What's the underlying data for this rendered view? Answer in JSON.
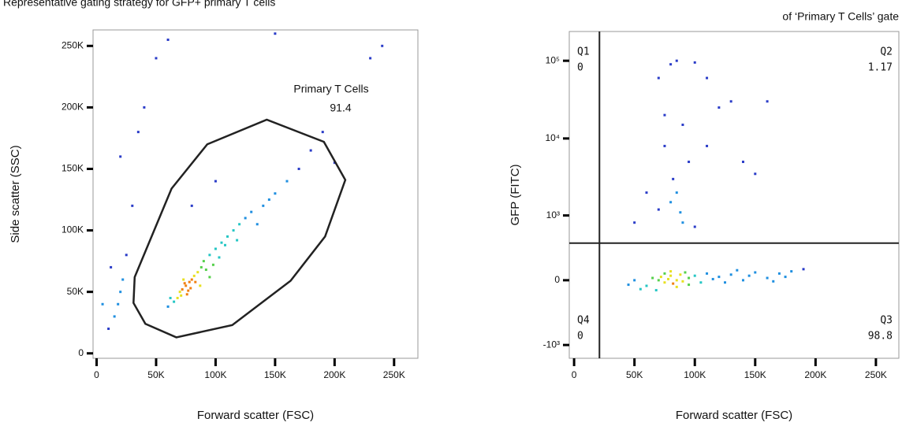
{
  "chart_data": [
    {
      "type": "scatter",
      "title": "Representative gating strategy for GFP+ primary T cells",
      "x_label": "Forward scatter (FSC)",
      "y_label": "Side scatter (SSC)",
      "xlim": [
        -3000,
        270000
      ],
      "ylim": [
        -4000,
        263000
      ],
      "xticks": [
        {
          "value": 0,
          "label": "0"
        },
        {
          "value": 50000,
          "label": "50K"
        },
        {
          "value": 100000,
          "label": "100K"
        },
        {
          "value": 150000,
          "label": "150K"
        },
        {
          "value": 200000,
          "label": "200K"
        },
        {
          "value": 250000,
          "label": "250K"
        }
      ],
      "yticks": [
        {
          "value": 0,
          "label": "0"
        },
        {
          "value": 50000,
          "label": "50K"
        },
        {
          "value": 100000,
          "label": "100K"
        },
        {
          "value": 150000,
          "label": "150K"
        },
        {
          "value": 200000,
          "label": "200K"
        },
        {
          "value": 250000,
          "label": "250K"
        }
      ],
      "points": {
        "x": [
          70000,
          75000,
          78000,
          72000,
          80000,
          76000,
          68000,
          82000,
          85000,
          74000,
          79000,
          73000,
          77000,
          71000,
          83000,
          88000,
          90000,
          95000,
          100000,
          105000,
          110000,
          92000,
          98000,
          115000,
          120000,
          108000,
          125000,
          130000,
          140000,
          150000,
          160000,
          65000,
          60000,
          62000,
          87000,
          95000,
          103000,
          118000,
          135000,
          145000,
          170000,
          180000,
          200000,
          20000,
          22000,
          18000,
          25000,
          15000,
          30000,
          20000,
          40000,
          50000,
          35000,
          10000,
          5000,
          12000,
          240000,
          60000,
          150000,
          190000,
          230000,
          100000,
          80000
        ],
        "y": [
          50000,
          55000,
          58000,
          52000,
          60000,
          48000,
          45000,
          63000,
          66000,
          57000,
          53000,
          60000,
          51000,
          47000,
          58000,
          70000,
          75000,
          80000,
          85000,
          90000,
          95000,
          68000,
          72000,
          100000,
          105000,
          88000,
          110000,
          115000,
          120000,
          130000,
          140000,
          42000,
          38000,
          45000,
          55000,
          62000,
          78000,
          92000,
          105000,
          125000,
          150000,
          165000,
          155000,
          50000,
          60000,
          40000,
          80000,
          30000,
          120000,
          160000,
          200000,
          240000,
          180000,
          20000,
          40000,
          70000,
          250000,
          255000,
          260000,
          180000,
          240000,
          140000,
          120000
        ]
      },
      "gate": {
        "name": "Primary T Cells",
        "value": 91.4,
        "x": [
          41000,
          67000,
          114000,
          163000,
          192000,
          209000,
          191000,
          143000,
          93000,
          63000,
          32000,
          31000
        ],
        "y": [
          24000,
          13000,
          23000,
          59000,
          95000,
          141000,
          172000,
          190000,
          170000,
          134000,
          62000,
          41000
        ]
      }
    },
    {
      "type": "scatter",
      "title": "of ‘Primary T Cells’ gate",
      "x_label": "Forward scatter (FSC)",
      "y_label": "GFP (FITC)",
      "yscale": "biexponential",
      "xlim": [
        -4000,
        269000
      ],
      "ylim": [
        -1500,
        238000
      ],
      "xticks": [
        {
          "value": 0,
          "label": "0"
        },
        {
          "value": 50000,
          "label": "50K"
        },
        {
          "value": 100000,
          "label": "100K"
        },
        {
          "value": 150000,
          "label": "150K"
        },
        {
          "value": 200000,
          "label": "200K"
        },
        {
          "value": 250000,
          "label": "250K"
        }
      ],
      "yticks": [
        {
          "value": -1000,
          "label": "-10³"
        },
        0,
        {
          "value": 1000,
          "label": "10³"
        },
        {
          "value": 10000,
          "label": "10⁴"
        },
        {
          "value": 100000,
          "label": "10⁵"
        }
      ],
      "points": {
        "x": [
          70000,
          80000,
          85000,
          100000,
          110000,
          75000,
          90000,
          95000,
          85000,
          80000,
          110000,
          140000,
          150000,
          70000,
          90000,
          60000,
          130000,
          160000,
          120000,
          75000,
          82000,
          88000,
          100000,
          50000,
          60000,
          65000,
          70000,
          72000,
          75000,
          78000,
          80000,
          82000,
          85000,
          88000,
          90000,
          95000,
          100000,
          105000,
          110000,
          115000,
          120000,
          130000,
          140000,
          150000,
          160000,
          170000,
          180000,
          190000,
          55000,
          50000,
          45000,
          75000,
          85000,
          95000,
          125000,
          135000,
          145000,
          165000,
          175000,
          68000,
          80000,
          92000
        ],
        "y": [
          60000,
          90000,
          100000,
          95000,
          60000,
          20000,
          15000,
          5000,
          2000,
          1500,
          8000,
          5000,
          3500,
          1200,
          800,
          2000,
          30000,
          30000,
          25000,
          8000,
          3000,
          1100,
          700,
          800,
          -50,
          20,
          0,
          30,
          -20,
          10,
          40,
          -30,
          0,
          50,
          -10,
          20,
          40,
          -20,
          60,
          10,
          30,
          50,
          0,
          70,
          20,
          60,
          80,
          100,
          -80,
          0,
          -40,
          60,
          -60,
          -40,
          -20,
          90,
          40,
          -10,
          30,
          -90,
          80,
          70
        ]
      },
      "quadrant_gate": {
        "x": 21000,
        "y": 400
      },
      "quadrants": [
        {
          "name": "Q1",
          "value": 0
        },
        {
          "name": "Q2",
          "value": 1.17
        },
        {
          "name": "Q3",
          "value": 98.8
        },
        {
          "name": "Q4",
          "value": 0
        }
      ]
    }
  ]
}
